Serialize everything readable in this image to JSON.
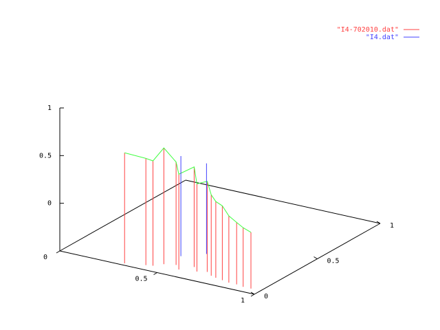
{
  "chart_data": {
    "type": "impulse3d",
    "xlim": [
      0,
      1
    ],
    "xticks": [
      0,
      0.5,
      1
    ],
    "ylim": [
      0,
      1
    ],
    "yticks": [
      0,
      0.5,
      1
    ],
    "zlim": [
      -0.5,
      1
    ],
    "zticks": [
      0,
      0.5,
      1
    ],
    "line_color": "#40ff40",
    "series": [
      {
        "name": "\"I4-702010.dat\"",
        "color": "#ff4040",
        "x": [
          0.32,
          0.41,
          0.44,
          0.47,
          0.52,
          0.56,
          0.6,
          0.64,
          0.68,
          0.72,
          0.75,
          0.79,
          0.83,
          0.87,
          0.91,
          0.95
        ],
        "y": [
          0.02,
          0.05,
          0.06,
          0.1,
          0.12,
          0.08,
          0.14,
          0.1,
          0.12,
          0.09,
          0.08,
          0.07,
          0.06,
          0.06,
          0.05,
          0.05
        ],
        "z": [
          0.66,
          0.62,
          0.6,
          0.72,
          0.58,
          0.5,
          0.55,
          0.42,
          0.45,
          0.35,
          0.3,
          0.28,
          0.2,
          0.15,
          0.12,
          0.09
        ]
      },
      {
        "name": "\"I4.dat\"",
        "color": "#4040ff",
        "x": [
          0.48,
          0.56
        ],
        "y": [
          0.22,
          0.3
        ],
        "z": [
          0.55,
          0.45
        ]
      }
    ]
  }
}
